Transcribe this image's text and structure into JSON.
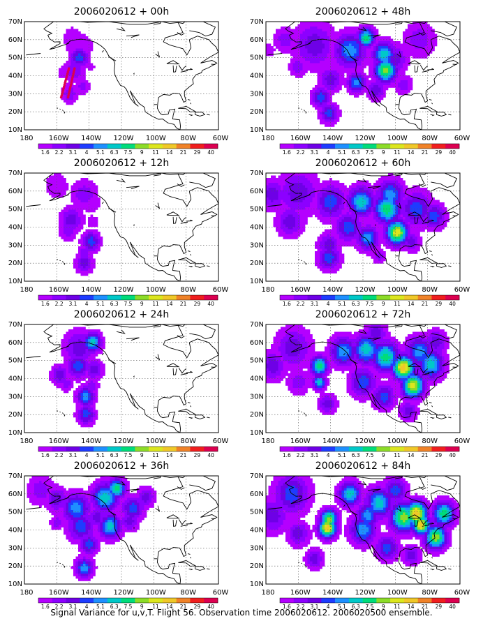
{
  "caption": "Signal Variance for u,v,T. Flight 56. Observation time 2006020612. 2006020500 ensemble.",
  "colorbar": {
    "labels": [
      "1.6",
      "2.2",
      "3.1",
      "4",
      "5.1",
      "6.3",
      "7.5",
      "9",
      "11",
      "14",
      "21",
      "29",
      "40"
    ],
    "colors": [
      "#b400ff",
      "#8c00ff",
      "#6e00e6",
      "#1e3cff",
      "#1e90ff",
      "#00c8c8",
      "#00dc7a",
      "#8cdc28",
      "#dce61e",
      "#f0c828",
      "#f08228",
      "#f01e1e",
      "#dc0050"
    ]
  },
  "axes": {
    "lat_labels": [
      "70N",
      "60N",
      "50N",
      "40N",
      "30N",
      "20N",
      "10N"
    ],
    "lon_labels": [
      "180",
      "160W",
      "140W",
      "120W",
      "100W",
      "80W",
      "60W"
    ]
  },
  "panels": [
    {
      "id": "p0",
      "title": "2006020612 + 00h",
      "col": 0,
      "row": 0,
      "level": 1
    },
    {
      "id": "p12",
      "title": "2006020612 + 12h",
      "col": 0,
      "row": 1,
      "level": 2
    },
    {
      "id": "p24",
      "title": "2006020612 + 24h",
      "col": 0,
      "row": 2,
      "level": 3
    },
    {
      "id": "p36",
      "title": "2006020612 + 36h",
      "col": 0,
      "row": 3,
      "level": 4
    },
    {
      "id": "p48",
      "title": "2006020612 + 48h",
      "col": 1,
      "row": 0,
      "level": 5
    },
    {
      "id": "p60",
      "title": "2006020612 + 60h",
      "col": 1,
      "row": 1,
      "level": 6
    },
    {
      "id": "p72",
      "title": "2006020612 + 72h",
      "col": 1,
      "row": 2,
      "level": 7
    },
    {
      "id": "p84",
      "title": "2006020612 + 84h",
      "col": 1,
      "row": 3,
      "level": 8
    }
  ]
}
